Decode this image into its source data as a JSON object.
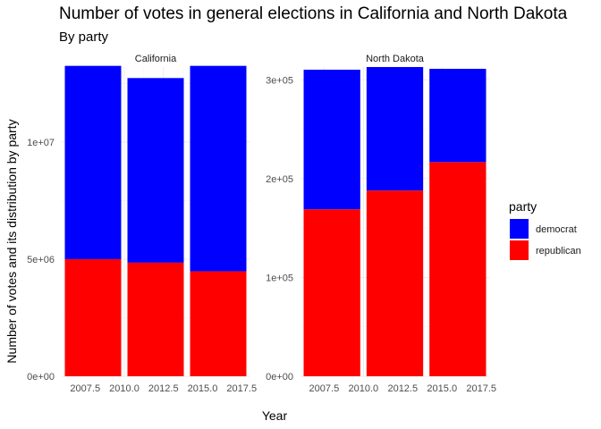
{
  "chart_data": {
    "type": "bar",
    "stacked": true,
    "title": "Number of votes in general elections in California and North Dakota",
    "subtitle": "By party",
    "xlabel": "Year",
    "ylabel": "Number of votes and its distribution by party",
    "grid": true,
    "legend": {
      "title": "party",
      "position": "right",
      "entries": [
        {
          "name": "democrat",
          "color": "#0000FF"
        },
        {
          "name": "republican",
          "color": "#FF0000"
        }
      ]
    },
    "stack_order": [
      "republican",
      "democrat"
    ],
    "xlim": [
      2006,
      2018
    ],
    "bar_width": 3.6,
    "panels": [
      {
        "strip": "California",
        "ylim": [
          0,
          13200000
        ],
        "y_ticks": [
          0,
          5000000,
          10000000
        ],
        "y_tick_labels": [
          "0e+00",
          "5e+06",
          "1e+07"
        ],
        "x_ticks": [
          2007.5,
          2010.0,
          2012.5,
          2015.0,
          2017.5
        ],
        "x_tick_labels": [
          "2007.5",
          "2010.0",
          "2012.5",
          "2015.0",
          "2017.5"
        ],
        "x": [
          2008,
          2012,
          2016
        ],
        "series": [
          {
            "name": "republican",
            "values": [
              5000000,
              4850000,
              4480000
            ]
          },
          {
            "name": "democrat",
            "values": [
              8250000,
              7880000,
              8770000
            ]
          }
        ]
      },
      {
        "strip": "North Dakota",
        "ylim": [
          0,
          313000
        ],
        "y_ticks": [
          0,
          100000,
          200000,
          300000
        ],
        "y_tick_labels": [
          "0e+00",
          "1e+05",
          "2e+05",
          "3e+05"
        ],
        "x_ticks": [
          2007.5,
          2010.0,
          2012.5,
          2015.0,
          2017.5
        ],
        "x_tick_labels": [
          "2007.5",
          "2010.0",
          "2012.5",
          "2015.0",
          "2017.5"
        ],
        "x": [
          2008,
          2012,
          2016
        ],
        "series": [
          {
            "name": "republican",
            "values": [
              169000,
              188000,
              216800
            ]
          },
          {
            "name": "democrat",
            "values": [
              141300,
              125000,
              94400
            ]
          }
        ]
      }
    ]
  }
}
